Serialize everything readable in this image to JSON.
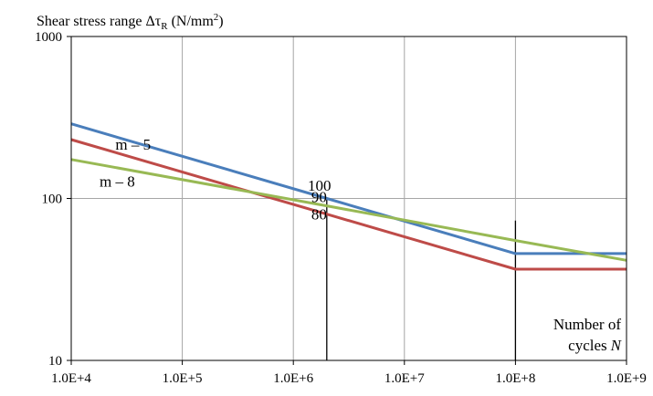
{
  "chart_data": {
    "type": "line",
    "title": "Shear stress range Δτ",
    "title_subscript": "R",
    "title_unit": "(N/mm",
    "title_unit_sup": "2",
    "title_unit_end": ")",
    "xlabel_line1": "Number of",
    "xlabel_line2": "cycles",
    "xlabel_var": "N",
    "x_scale": "log",
    "y_scale": "log",
    "xlim": [
      10000,
      1000000000
    ],
    "ylim": [
      10,
      1000
    ],
    "x_ticks": [
      {
        "value": 10000,
        "label": "1.0E+4"
      },
      {
        "value": 100000,
        "label": "1.0E+5"
      },
      {
        "value": 1000000,
        "label": "1.0E+6"
      },
      {
        "value": 10000000,
        "label": "1.0E+7"
      },
      {
        "value": 100000000,
        "label": "1.0E+8"
      },
      {
        "value": 1000000000,
        "label": "1.0E+9"
      }
    ],
    "y_ticks": [
      {
        "value": 10,
        "label": "10"
      },
      {
        "value": 100,
        "label": "100"
      },
      {
        "value": 1000,
        "label": "1000"
      }
    ],
    "grid": true,
    "series": [
      {
        "color": "#4a7ebb",
        "points": [
          [
            10000,
            289
          ],
          [
            2000000,
            100
          ],
          [
            100000000,
            45.7
          ],
          [
            1000000000,
            45.7
          ]
        ]
      },
      {
        "color": "#be4b48",
        "points": [
          [
            10000,
            231
          ],
          [
            2000000,
            80
          ],
          [
            100000000,
            36.6
          ],
          [
            1000000000,
            36.6
          ]
        ]
      },
      {
        "color": "#98b954",
        "points": [
          [
            10000,
            174
          ],
          [
            2000000,
            90
          ],
          [
            100000000,
            55.0
          ],
          [
            1000000000,
            41.5
          ]
        ]
      }
    ],
    "annotations": [
      {
        "text": "m – 5",
        "x": 25000,
        "y": 200
      },
      {
        "text": "m – 8",
        "x": 18000,
        "y": 118
      },
      {
        "text": "100",
        "x": 1350000,
        "y": 112
      },
      {
        "text": "90",
        "x": 1450000,
        "y": 95
      },
      {
        "text": "80",
        "x": 1450000,
        "y": 74
      }
    ],
    "reference_lines": [
      {
        "x": 2000000,
        "y_from": 10,
        "y_to": 100
      },
      {
        "x": 100000000,
        "y_from": 10,
        "y_to": 73
      }
    ]
  }
}
